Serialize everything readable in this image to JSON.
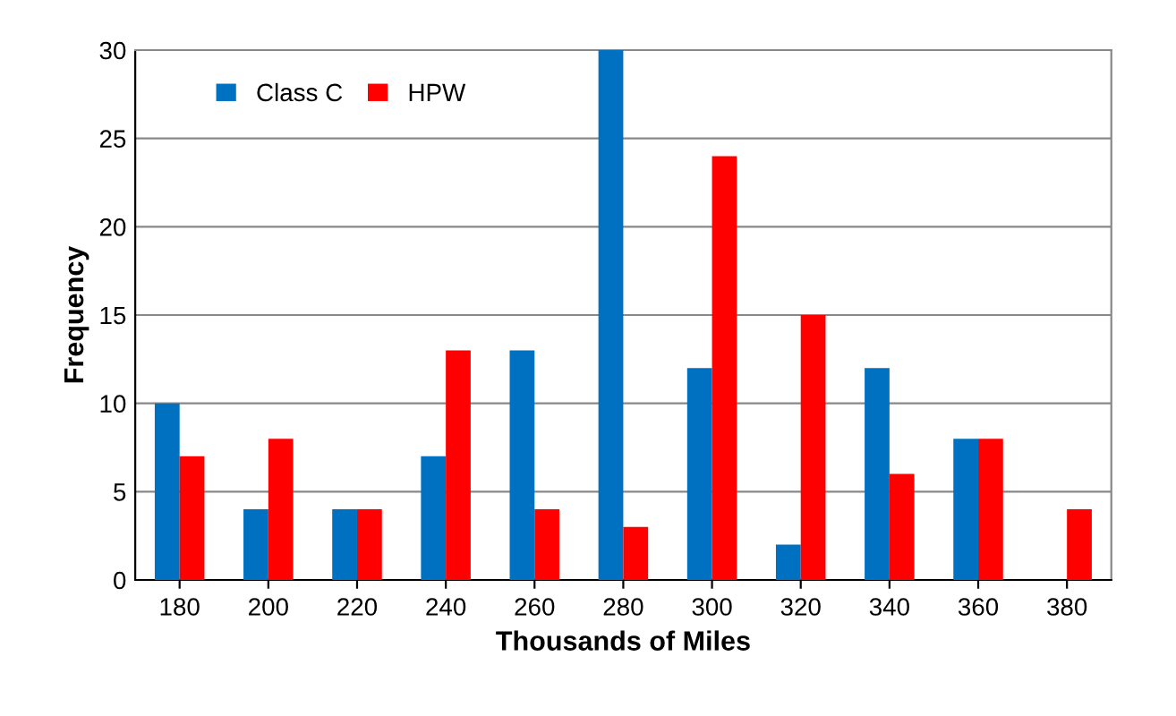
{
  "chart_data": {
    "type": "bar",
    "xlabel": "Thousands of Miles",
    "ylabel": "Frequency",
    "categories": [
      "180",
      "200",
      "220",
      "240",
      "260",
      "280",
      "300",
      "320",
      "340",
      "360",
      "380"
    ],
    "series": [
      {
        "name": "Class C",
        "color": "#0070c0",
        "values": [
          10,
          4,
          4,
          7,
          13,
          30,
          12,
          2,
          12,
          8,
          0
        ]
      },
      {
        "name": "HPW",
        "color": "#ff0000",
        "values": [
          7,
          8,
          4,
          13,
          4,
          3,
          24,
          15,
          6,
          8,
          4
        ]
      }
    ],
    "ylim": [
      0,
      30
    ],
    "yticks": [
      0,
      5,
      10,
      15,
      20,
      25,
      30
    ],
    "grid": "y",
    "legend": "top left"
  }
}
